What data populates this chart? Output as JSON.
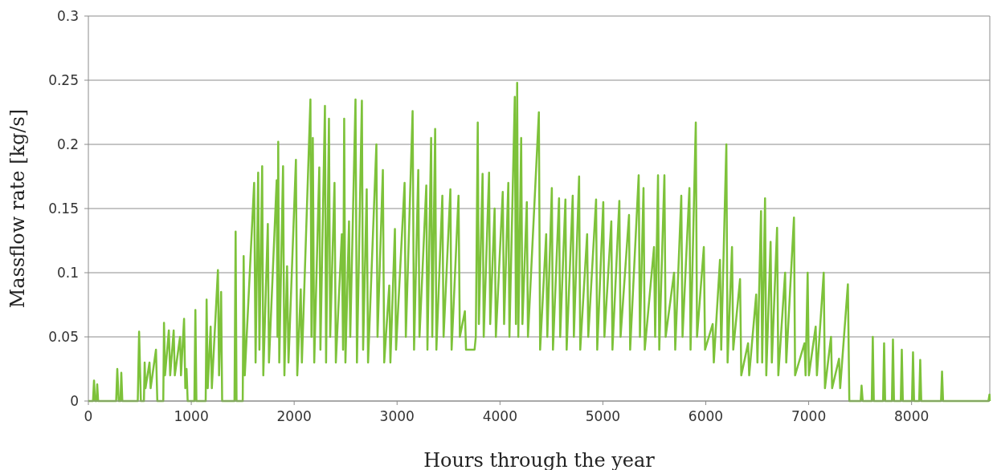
{
  "chart_data": {
    "type": "line",
    "xlabel": "Hours through the year",
    "ylabel": "Massflow rate [kg/s]",
    "color": "#7dc23a",
    "xlim": [
      0,
      8760
    ],
    "ylim": [
      0,
      0.3
    ],
    "xticks": [
      0,
      1000,
      2000,
      3000,
      4000,
      5000,
      6000,
      7000,
      8000
    ],
    "yticks": [
      0,
      0.05,
      0.1,
      0.15,
      0.2,
      0.25,
      0.3
    ],
    "grid": "y",
    "x": [
      0,
      45,
      55,
      65,
      80,
      86,
      95,
      270,
      281,
      295,
      312,
      320,
      330,
      480,
      493,
      510,
      540,
      547,
      555,
      594,
      605,
      657,
      670,
      728,
      735,
      745,
      782,
      795,
      829,
      840,
      891,
      900,
      930,
      942,
      954,
      965,
      1030,
      1040,
      1050,
      1140,
      1149,
      1160,
      1188,
      1200,
      1259,
      1270,
      1290,
      1300,
      1420,
      1431,
      1440,
      1500,
      1509,
      1520,
      1611,
      1625,
      1650,
      1662,
      1689,
      1700,
      1744,
      1755,
      1830,
      1838,
      1845,
      1855,
      1892,
      1905,
      1931,
      1945,
      2017,
      2030,
      2064,
      2075,
      2158,
      2168,
      2181,
      2195,
      2244,
      2255,
      2299,
      2310,
      2338,
      2350,
      2392,
      2405,
      2463,
      2475,
      2486,
      2498,
      2533,
      2545,
      2596,
      2610,
      2658,
      2670,
      2705,
      2718,
      2799,
      2810,
      2862,
      2875,
      2924,
      2935,
      2979,
      2990,
      3073,
      3085,
      3151,
      3165,
      3206,
      3218,
      3284,
      3295,
      3331,
      3342,
      3370,
      3382,
      3440,
      3452,
      3518,
      3530,
      3597,
      3610,
      3659,
      3670,
      3753,
      3765,
      3784,
      3795,
      3831,
      3842,
      3894,
      3905,
      3948,
      3960,
      4027,
      4040,
      4081,
      4092,
      4144,
      4155,
      4167,
      4178,
      4206,
      4218,
      4261,
      4272,
      4378,
      4390,
      4449,
      4460,
      4504,
      4515,
      4574,
      4585,
      4636,
      4648,
      4707,
      4718,
      4769,
      4780,
      4847,
      4858,
      4934,
      4945,
      5004,
      5015,
      5082,
      5093,
      5160,
      5172,
      5254,
      5265,
      5348,
      5360,
      5395,
      5407,
      5497,
      5508,
      5536,
      5548,
      5598,
      5610,
      5692,
      5703,
      5762,
      5774,
      5841,
      5852,
      5903,
      5915,
      5981,
      5993,
      6067,
      6078,
      6138,
      6150,
      6200,
      6212,
      6255,
      6267,
      6333,
      6345,
      6411,
      6422,
      6490,
      6502,
      6537,
      6548,
      6576,
      6588,
      6630,
      6642,
      6693,
      6705,
      6771,
      6782,
      6857,
      6868,
      6959,
      6970,
      6990,
      7002,
      7068,
      7080,
      7146,
      7158,
      7217,
      7228,
      7295,
      7306,
      7381,
      7395,
      7505,
      7514,
      7525,
      7613,
      7623,
      7633,
      7723,
      7733,
      7743,
      7809,
      7819,
      7829,
      7895,
      7905,
      7915,
      8004,
      8014,
      8024,
      8074,
      8084,
      8094,
      8286,
      8296,
      8306,
      8747,
      8757,
      8760
    ],
    "values": [
      0,
      0,
      0.016,
      0,
      0,
      0.013,
      0,
      0,
      0.025,
      0,
      0,
      0.022,
      0,
      0,
      0.054,
      0,
      0,
      0.03,
      0.01,
      0.03,
      0.01,
      0.04,
      0,
      0,
      0.061,
      0.02,
      0.055,
      0.02,
      0.055,
      0.02,
      0.05,
      0.02,
      0.064,
      0.01,
      0.025,
      0,
      0,
      0.071,
      0,
      0,
      0.079,
      0.01,
      0.058,
      0.01,
      0.102,
      0.02,
      0.085,
      0,
      0,
      0.132,
      0,
      0,
      0.113,
      0.02,
      0.17,
      0.03,
      0.178,
      0.04,
      0.183,
      0.02,
      0.138,
      0.03,
      0.172,
      0.05,
      0.202,
      0.03,
      0.183,
      0.02,
      0.105,
      0.03,
      0.188,
      0.02,
      0.087,
      0.03,
      0.235,
      0.05,
      0.205,
      0.03,
      0.182,
      0.04,
      0.23,
      0.03,
      0.22,
      0.05,
      0.17,
      0.03,
      0.13,
      0.04,
      0.22,
      0.03,
      0.14,
      0.05,
      0.235,
      0.03,
      0.234,
      0.04,
      0.165,
      0.03,
      0.2,
      0.05,
      0.18,
      0.03,
      0.09,
      0.03,
      0.134,
      0.04,
      0.17,
      0.05,
      0.226,
      0.04,
      0.18,
      0.05,
      0.168,
      0.04,
      0.205,
      0.05,
      0.212,
      0.04,
      0.16,
      0.05,
      0.165,
      0.04,
      0.16,
      0.05,
      0.07,
      0.04,
      0.04,
      0.05,
      0.217,
      0.06,
      0.177,
      0.05,
      0.178,
      0.06,
      0.15,
      0.05,
      0.163,
      0.06,
      0.17,
      0.05,
      0.237,
      0.06,
      0.248,
      0.05,
      0.205,
      0.06,
      0.155,
      0.05,
      0.225,
      0.04,
      0.13,
      0.05,
      0.166,
      0.04,
      0.158,
      0.05,
      0.157,
      0.04,
      0.16,
      0.05,
      0.175,
      0.04,
      0.13,
      0.05,
      0.157,
      0.04,
      0.155,
      0.05,
      0.14,
      0.04,
      0.156,
      0.05,
      0.145,
      0.04,
      0.176,
      0.05,
      0.166,
      0.04,
      0.12,
      0.05,
      0.176,
      0.04,
      0.176,
      0.05,
      0.1,
      0.04,
      0.16,
      0.05,
      0.166,
      0.04,
      0.217,
      0.05,
      0.12,
      0.04,
      0.06,
      0.03,
      0.11,
      0.04,
      0.2,
      0.03,
      0.12,
      0.04,
      0.095,
      0.02,
      0.045,
      0.02,
      0.083,
      0.03,
      0.148,
      0.03,
      0.158,
      0.02,
      0.124,
      0.03,
      0.135,
      0.02,
      0.1,
      0.03,
      0.143,
      0.02,
      0.045,
      0.02,
      0.1,
      0.02,
      0.058,
      0.02,
      0.1,
      0.01,
      0.05,
      0.01,
      0.033,
      0.01,
      0.091,
      0,
      0,
      0.012,
      0,
      0,
      0.05,
      0,
      0,
      0.045,
      0,
      0,
      0.048,
      0,
      0,
      0.04,
      0,
      0,
      0.038,
      0,
      0,
      0.032,
      0,
      0,
      0.023,
      0,
      0,
      0.005,
      0
    ]
  }
}
